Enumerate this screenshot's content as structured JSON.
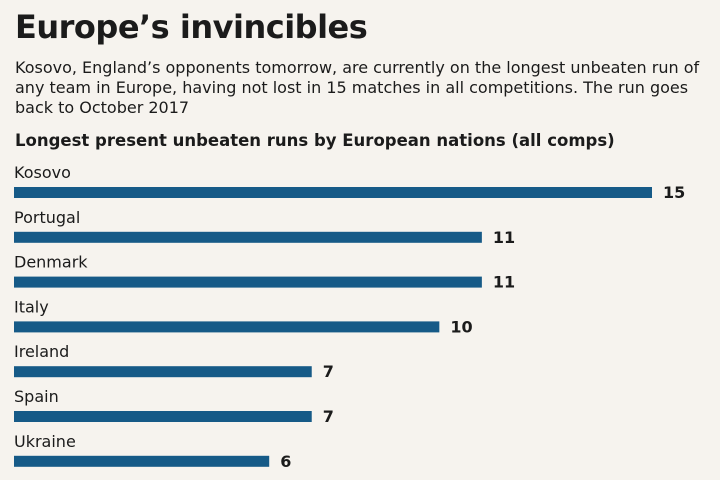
{
  "header": {
    "title": "Europe’s invincibles",
    "subtitle": "Kosovo, England’s opponents tomorrow, are currently on the longest unbeaten run of any team in Europe, having not lost in 15 matches in all competitions. The run goes back to October 2017"
  },
  "chart_data": {
    "type": "bar",
    "orientation": "horizontal",
    "title": "Longest present unbeaten runs by European nations (all comps)",
    "categories": [
      "Kosovo",
      "Portugal",
      "Denmark",
      "Italy",
      "Ireland",
      "Spain",
      "Ukraine"
    ],
    "values": [
      15,
      11,
      11,
      10,
      7,
      7,
      6
    ],
    "bar_color": "#165a87",
    "xlim": [
      0,
      15
    ],
    "grid": false,
    "legend": "none"
  }
}
